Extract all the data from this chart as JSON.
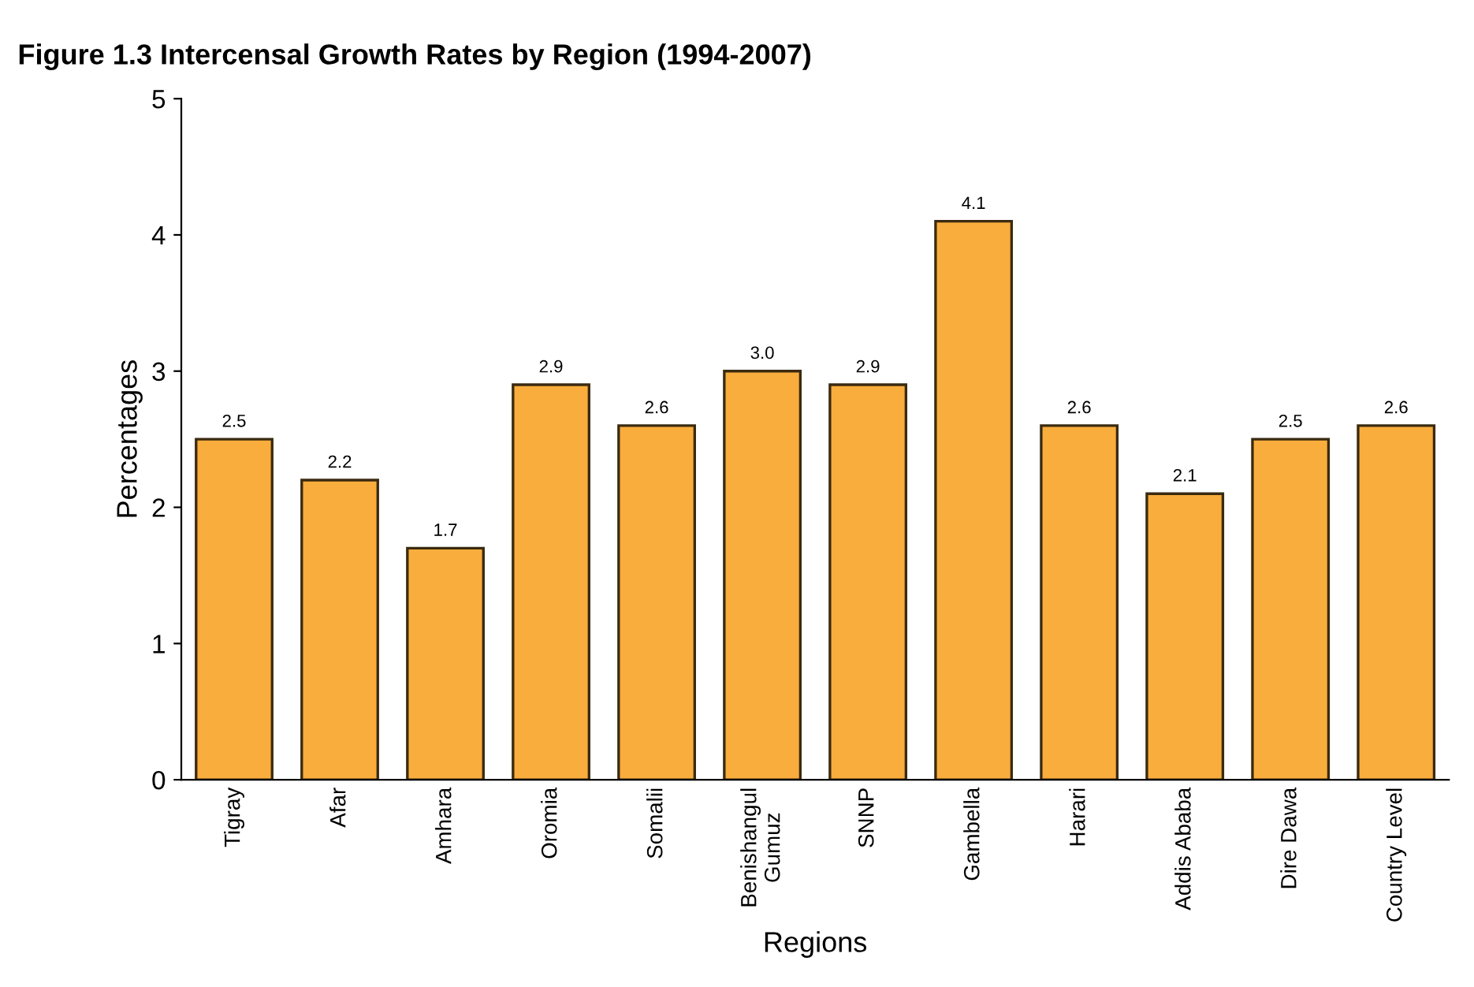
{
  "chart_data": {
    "type": "bar",
    "title": "Figure 1.3 Intercensal Growth Rates by Region (1994-2007)",
    "xlabel": "Regions",
    "ylabel": "Percentages",
    "categories": [
      "Tigray",
      "Afar",
      "Amhara",
      "Oromia",
      "Somalii",
      "Benishangul\nGumuz",
      "SNNP",
      "Gambella",
      "Harari",
      "Addis Ababa",
      "Dire Dawa",
      "Country Level"
    ],
    "values": [
      2.5,
      2.2,
      1.7,
      2.9,
      2.6,
      3.0,
      2.9,
      4.1,
      2.6,
      2.1,
      2.5,
      2.6
    ],
    "value_labels": [
      "2.5",
      "2.2",
      "1.7",
      "2.9",
      "2.6",
      "3.0",
      "2.9",
      "4.1",
      "2.6",
      "2.1",
      "2.5",
      "2.6"
    ],
    "color": "#f9ad3c",
    "ylim": [
      0,
      5
    ],
    "yticks": [
      0,
      1,
      2,
      3,
      4,
      5
    ],
    "grid": false,
    "legend": false
  }
}
